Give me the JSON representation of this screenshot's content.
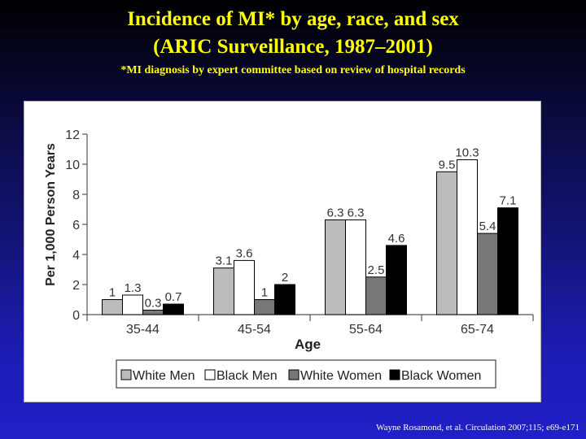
{
  "slide": {
    "title_line1": "Incidence of MI* by age, race, and sex",
    "title_line2": "(ARIC Surveillance, 1987–2001)",
    "subtitle": "*MI diagnosis by expert committee based on review of hospital records",
    "citation": "Wayne Rosamond, et al. Circulation  2007;115; e69-e171",
    "background_colors": [
      "#000000",
      "#2020c8"
    ],
    "title_color": "#ffff00"
  },
  "chart_data": {
    "type": "bar",
    "title": "",
    "xlabel": "Age",
    "ylabel": "Per 1,000 Person Years",
    "ylim": [
      0,
      12
    ],
    "yticks": [
      "0",
      "2",
      "4",
      "6",
      "8",
      "10",
      "12"
    ],
    "categories": [
      "35-44",
      "45-54",
      "55-64",
      "65-74"
    ],
    "series": [
      {
        "name": "White Men",
        "color": "#bbbbbb",
        "values": [
          1,
          3.1,
          6.3,
          9.5
        ],
        "labels": [
          "1",
          "3.1",
          "6.3",
          "9.5"
        ]
      },
      {
        "name": "Black Men",
        "color": "#ffffff",
        "values": [
          1.3,
          3.6,
          6.3,
          10.3
        ],
        "labels": [
          "1.3",
          "3.6",
          "6.3",
          "10.3"
        ]
      },
      {
        "name": "White Women",
        "color": "#777777",
        "values": [
          0.3,
          1,
          2.5,
          5.4
        ],
        "labels": [
          "0.3",
          "1",
          "2.5",
          "5.4"
        ]
      },
      {
        "name": "Black Women",
        "color": "#000000",
        "values": [
          0.7,
          2,
          4.6,
          7.1
        ],
        "labels": [
          "0.7",
          "2",
          "4.6",
          "7.1"
        ]
      }
    ],
    "grid": false,
    "legend_position": "bottom"
  }
}
